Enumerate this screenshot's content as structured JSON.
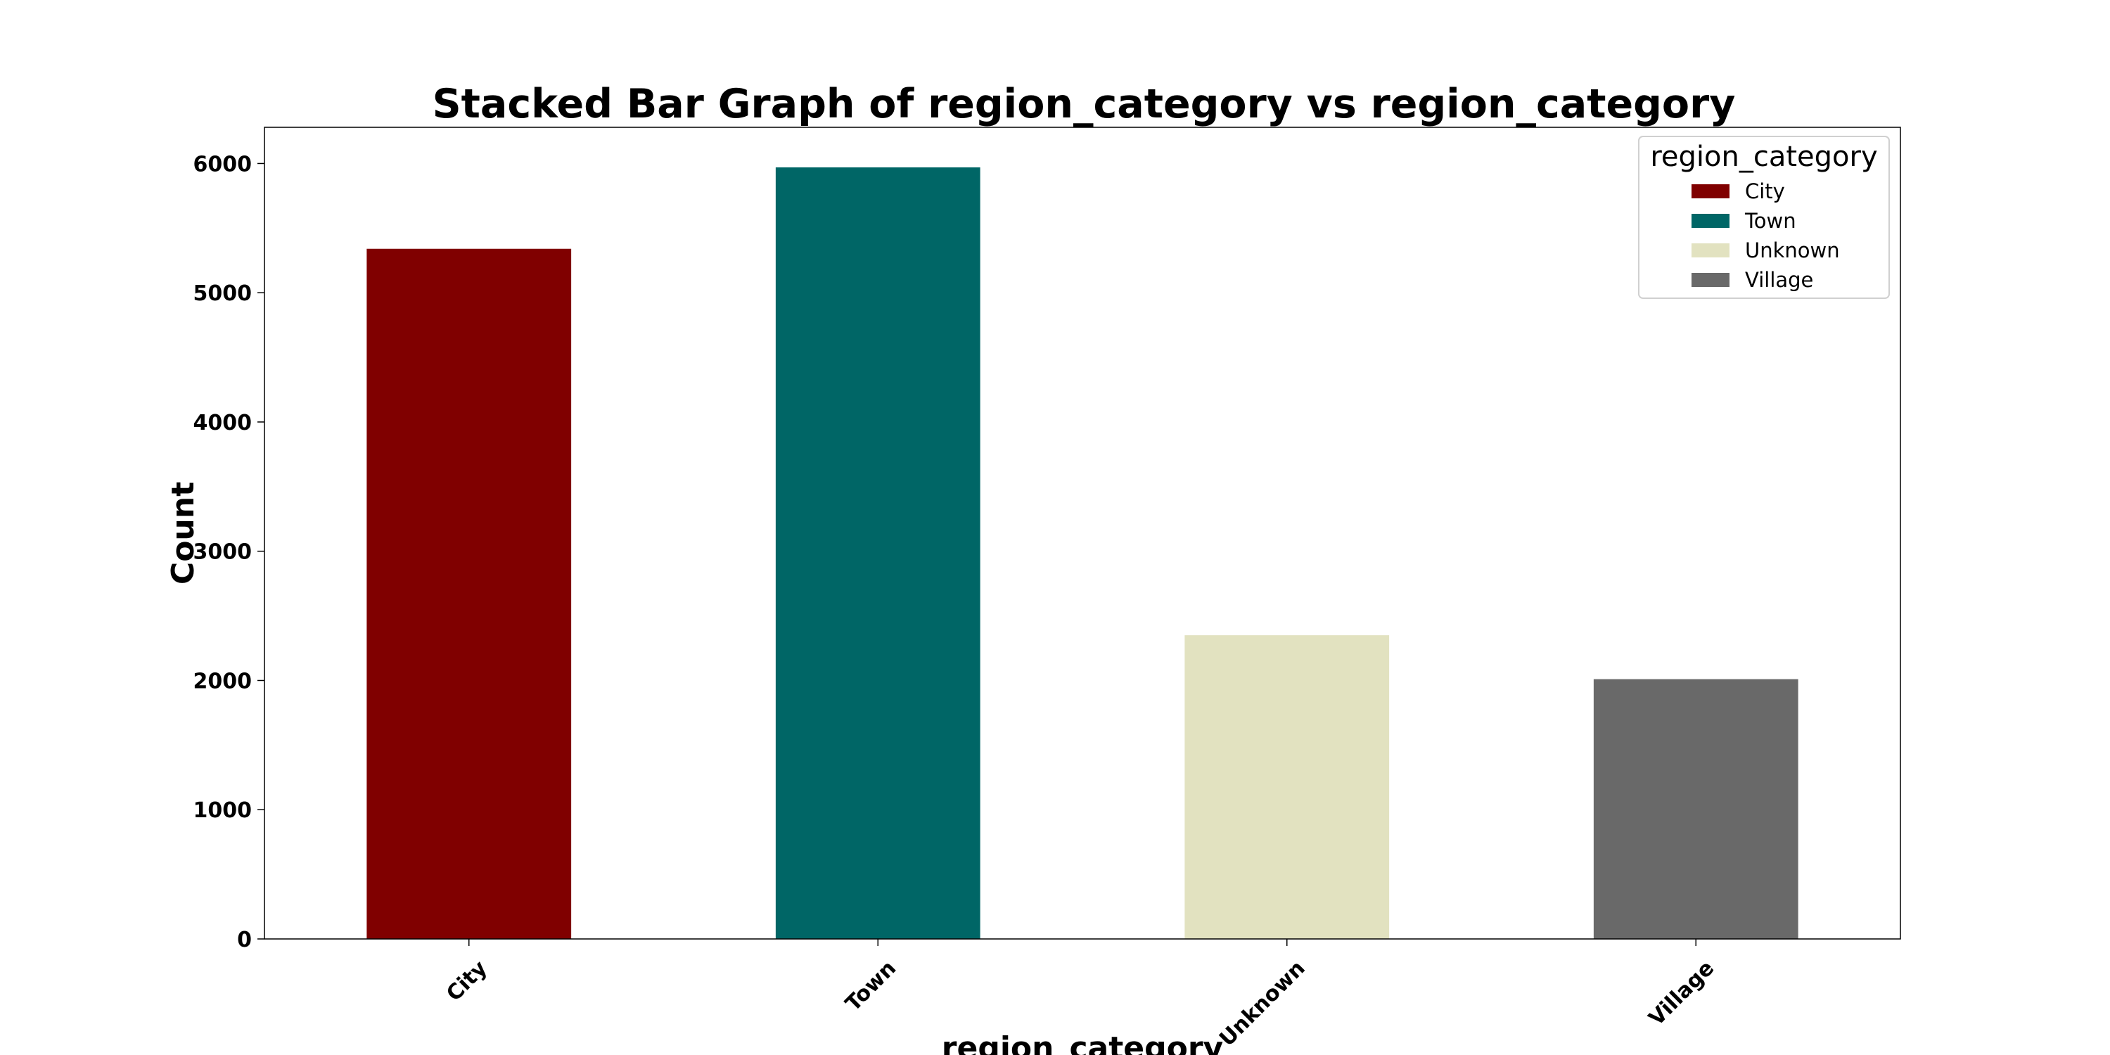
{
  "chart_data": {
    "type": "bar",
    "stacked": true,
    "title": "Stacked Bar Graph of region_category vs region_category",
    "xlabel": "region_category",
    "ylabel": "Count",
    "categories": [
      "City",
      "Town",
      "Unknown",
      "Village"
    ],
    "series": [
      {
        "name": "City",
        "color": "#800000",
        "values": [
          5340,
          0,
          0,
          0
        ]
      },
      {
        "name": "Town",
        "color": "#006666",
        "values": [
          0,
          5970,
          0,
          0
        ]
      },
      {
        "name": "Unknown",
        "color": "#e2e2c0",
        "values": [
          0,
          0,
          2350,
          0
        ]
      },
      {
        "name": "Village",
        "color": "#696969",
        "values": [
          0,
          0,
          0,
          2010
        ]
      }
    ],
    "ylim": [
      0,
      6280
    ],
    "yticks": [
      0,
      1000,
      2000,
      3000,
      4000,
      5000,
      6000
    ],
    "grid": false,
    "legend": {
      "title": "region_category",
      "position": "top-right"
    }
  }
}
